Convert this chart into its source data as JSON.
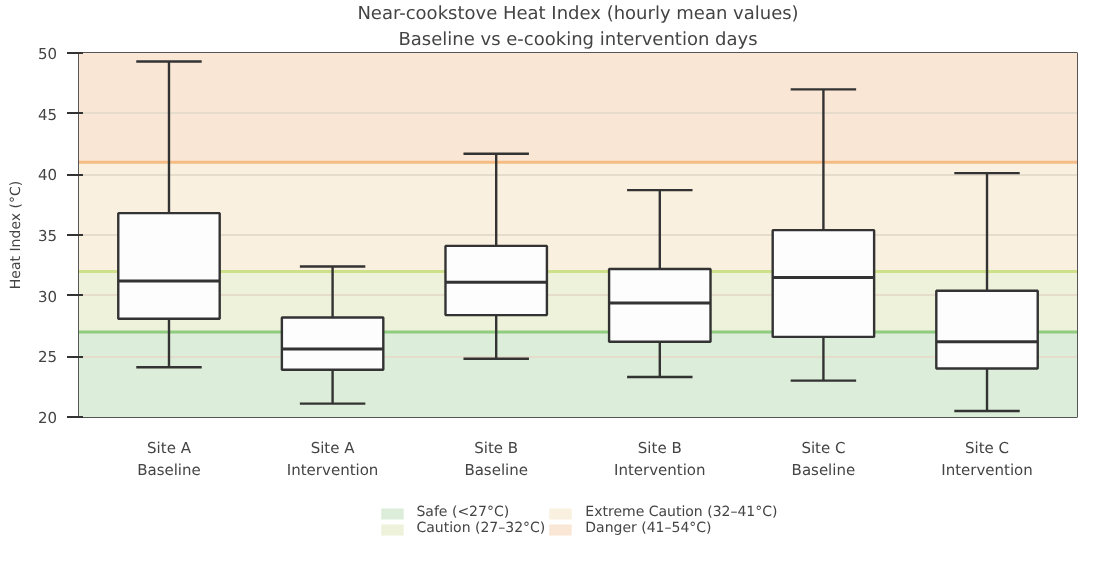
{
  "chart_data": {
    "type": "box",
    "title": "Near-cookstove Heat Index (hourly mean values)",
    "subtitle": "Baseline vs e-cooking intervention days",
    "ylabel": "Heat Index (°C)",
    "categories": [
      "Site A\nBaseline",
      "Site A\nIntervention",
      "Site B\nBaseline",
      "Site B\nIntervention",
      "Site C\nBaseline",
      "Site C\nIntervention"
    ],
    "boxes": [
      {
        "low": 24.1,
        "q1": 28.1,
        "median": 31.2,
        "q3": 36.8,
        "high": 49.3
      },
      {
        "low": 21.1,
        "q1": 23.9,
        "median": 25.6,
        "q3": 28.2,
        "high": 32.4
      },
      {
        "low": 24.8,
        "q1": 28.4,
        "median": 31.1,
        "q3": 34.1,
        "high": 41.7
      },
      {
        "low": 23.3,
        "q1": 26.2,
        "median": 29.4,
        "q3": 32.2,
        "high": 38.7
      },
      {
        "low": 23.0,
        "q1": 26.6,
        "median": 31.5,
        "q3": 35.4,
        "high": 47.0
      },
      {
        "low": 20.5,
        "q1": 24.0,
        "median": 26.2,
        "q3": 30.4,
        "high": 40.1
      }
    ],
    "ylim": [
      20,
      50
    ],
    "yticks": [
      20,
      25,
      30,
      35,
      40,
      45,
      50
    ],
    "grid": "y",
    "legend": "bottom",
    "bands": [
      {
        "axis": "y",
        "from": 20,
        "to": 27,
        "label": "Safe (<27°C)",
        "color": "#dcedd9"
      },
      {
        "axis": "y",
        "from": 27,
        "to": 32,
        "label": "Caution (27–32°C)",
        "color": "#eef2da"
      },
      {
        "axis": "y",
        "from": 32,
        "to": 41,
        "label": "Extreme Caution (32–41°C)",
        "color": "#f9f0df"
      },
      {
        "axis": "y",
        "from": 41,
        "to": 50,
        "label": "Danger (41–54°C)",
        "color": "#f9e6d4"
      }
    ],
    "ref_lines": [
      {
        "axis": "y",
        "value": 27,
        "color": "#90cc80"
      },
      {
        "axis": "y",
        "value": 32,
        "color": "#cde08a"
      },
      {
        "axis": "y",
        "value": 41,
        "color": "#f5bd85"
      }
    ]
  }
}
